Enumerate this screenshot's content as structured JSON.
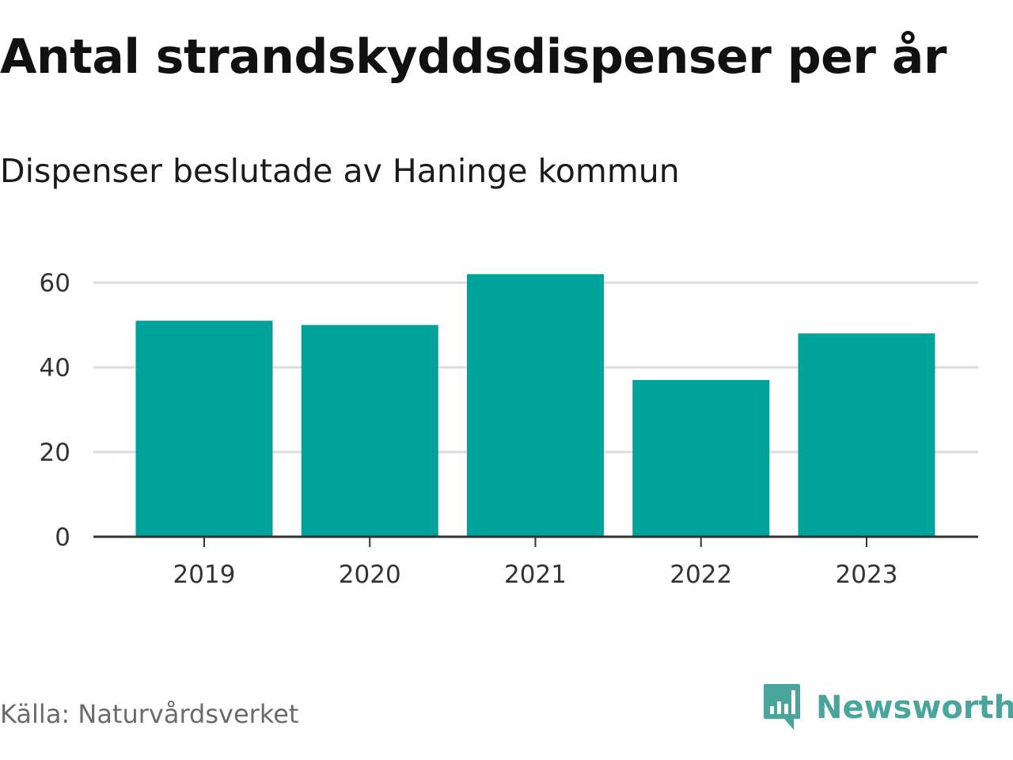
{
  "chart_data": {
    "type": "bar",
    "title": "Antal strandskyddsdispenser per år",
    "subtitle": "Dispenser beslutade av Haninge kommun",
    "categories": [
      "2019",
      "2020",
      "2021",
      "2022",
      "2023"
    ],
    "values": [
      51,
      50,
      62,
      37,
      48
    ],
    "xlabel": "",
    "ylabel": "",
    "ylim": [
      0,
      60
    ],
    "yticks": [
      0,
      20,
      40,
      60
    ],
    "grid": true,
    "bar_color": "#00a39a",
    "source": "Källa: Naturvårdsverket"
  },
  "brand": {
    "name": "Newsworthy",
    "color": "#4aa69d",
    "logo_icon": "newsworthy-logo-icon"
  }
}
